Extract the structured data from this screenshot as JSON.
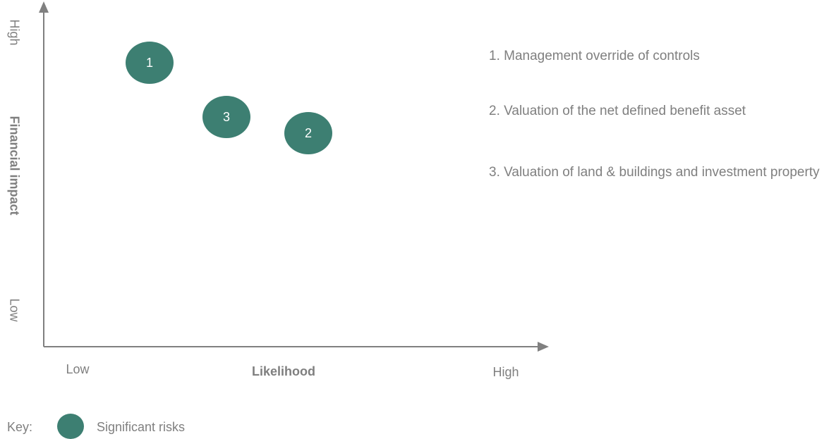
{
  "y_axis": {
    "label": "Financial impact",
    "low": "Low",
    "high": "High"
  },
  "x_axis": {
    "label": "Likelihood",
    "low": "Low",
    "high": "High"
  },
  "risks": [
    {
      "number": "1",
      "label": "1.  Management override of controls"
    },
    {
      "number": "2",
      "label": "2. Valuation of the net defined benefit asset"
    },
    {
      "number": "3",
      "label": "3.  Valuation of land & buildings and investment property"
    }
  ],
  "key": {
    "label": "Key:",
    "item": "Significant risks"
  }
}
